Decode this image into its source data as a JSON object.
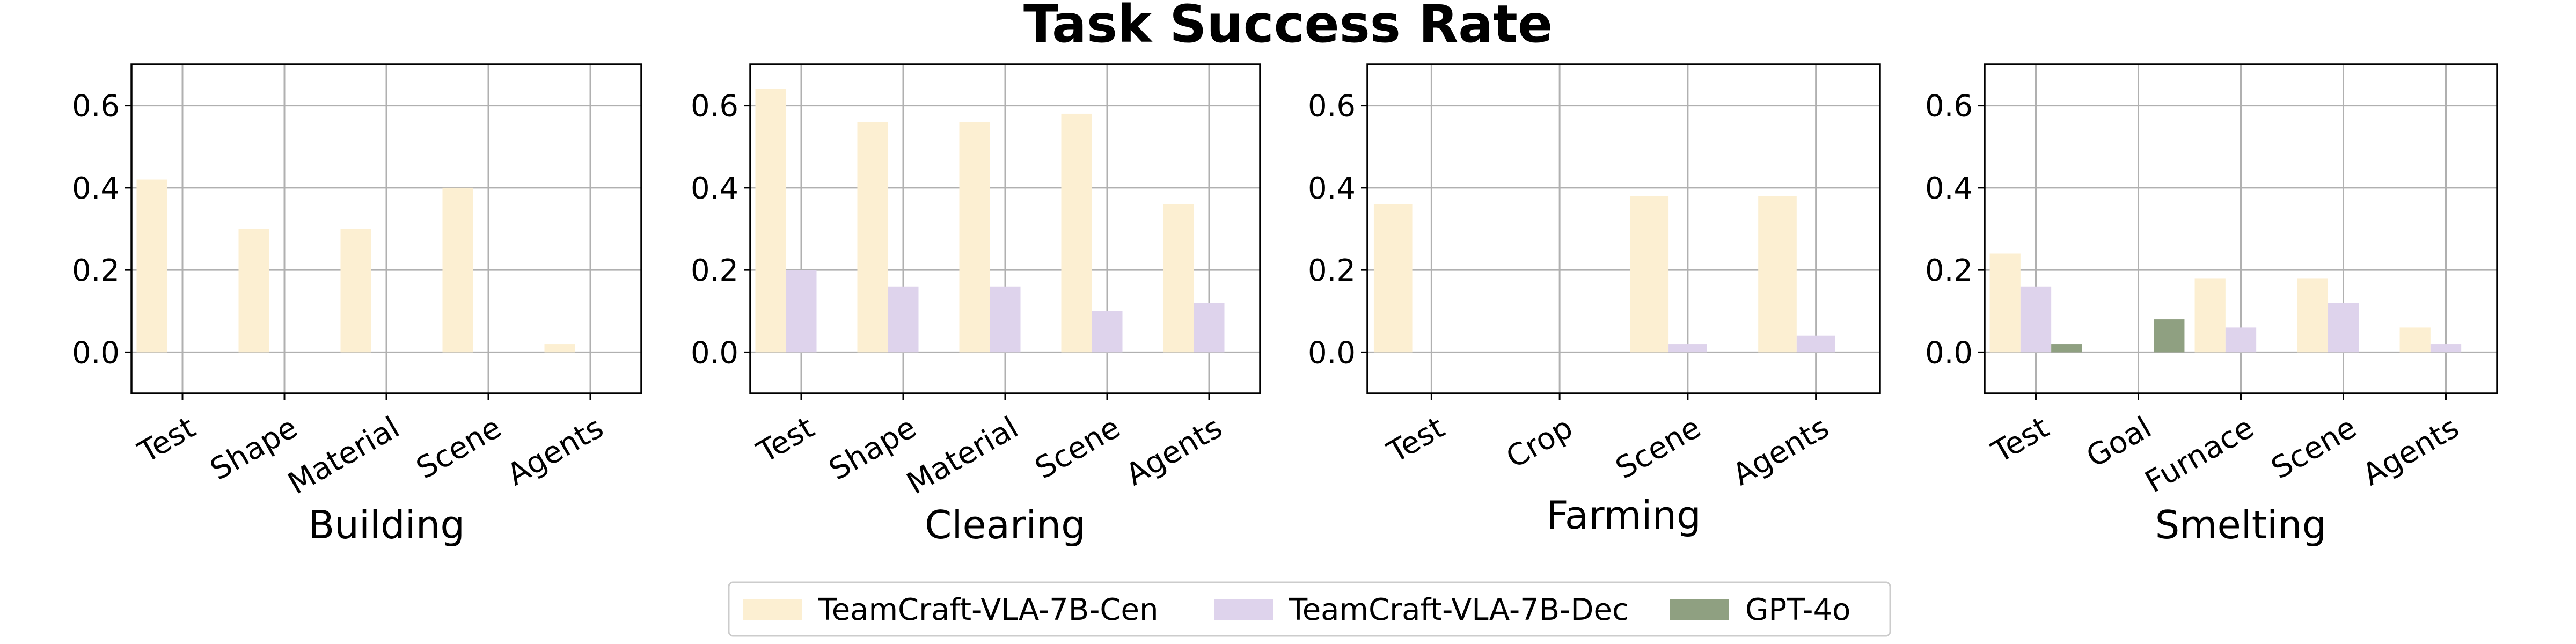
{
  "chart_data": {
    "title": "Task Success Rate",
    "type": "bar",
    "legend": {
      "placement": "bottom-center",
      "entries": [
        {
          "name": "TeamCraft-VLA-7B-Cen",
          "color": "#FCEFD2"
        },
        {
          "name": "TeamCraft-VLA-7B-Dec",
          "color": "#DED3EC"
        },
        {
          "name": "GPT-4o",
          "color": "#8FA081"
        }
      ]
    },
    "ylim": [
      -0.1,
      0.7
    ],
    "yticks": [
      "0.0",
      "0.2",
      "0.4",
      "0.6"
    ],
    "ytick_values": [
      0.0,
      0.2,
      0.4,
      0.6
    ],
    "grid": true,
    "panels": [
      {
        "label": "Building",
        "categories": [
          "Test",
          "Shape",
          "Material",
          "Scene",
          "Agents"
        ],
        "series": [
          {
            "name": "TeamCraft-VLA-7B-Cen",
            "values": [
              0.42,
              0.3,
              0.3,
              0.4,
              0.02
            ]
          },
          {
            "name": "TeamCraft-VLA-7B-Dec",
            "values": [
              0.0,
              0.0,
              0.0,
              0.0,
              0.0
            ]
          },
          {
            "name": "GPT-4o",
            "values": [
              0.0,
              0.0,
              0.0,
              0.0,
              0.0
            ]
          }
        ]
      },
      {
        "label": "Clearing",
        "categories": [
          "Test",
          "Shape",
          "Material",
          "Scene",
          "Agents"
        ],
        "series": [
          {
            "name": "TeamCraft-VLA-7B-Cen",
            "values": [
              0.64,
              0.56,
              0.56,
              0.58,
              0.36
            ]
          },
          {
            "name": "TeamCraft-VLA-7B-Dec",
            "values": [
              0.2,
              0.16,
              0.16,
              0.1,
              0.12
            ]
          },
          {
            "name": "GPT-4o",
            "values": [
              0.0,
              0.0,
              0.0,
              0.0,
              0.0
            ]
          }
        ]
      },
      {
        "label": "Farming",
        "categories": [
          "Test",
          "Crop",
          "Scene",
          "Agents"
        ],
        "series": [
          {
            "name": "TeamCraft-VLA-7B-Cen",
            "values": [
              0.36,
              0.0,
              0.38,
              0.38
            ]
          },
          {
            "name": "TeamCraft-VLA-7B-Dec",
            "values": [
              0.0,
              0.0,
              0.02,
              0.04
            ]
          },
          {
            "name": "GPT-4o",
            "values": [
              0.0,
              0.0,
              0.0,
              0.0
            ]
          }
        ]
      },
      {
        "label": "Smelting",
        "categories": [
          "Test",
          "Goal",
          "Furnace",
          "Scene",
          "Agents"
        ],
        "series": [
          {
            "name": "TeamCraft-VLA-7B-Cen",
            "values": [
              0.24,
              0.0,
              0.18,
              0.18,
              0.06
            ]
          },
          {
            "name": "TeamCraft-VLA-7B-Dec",
            "values": [
              0.16,
              0.0,
              0.06,
              0.12,
              0.02
            ]
          },
          {
            "name": "GPT-4o",
            "values": [
              0.02,
              0.08,
              0.0,
              0.0,
              0.0
            ]
          }
        ]
      }
    ]
  }
}
